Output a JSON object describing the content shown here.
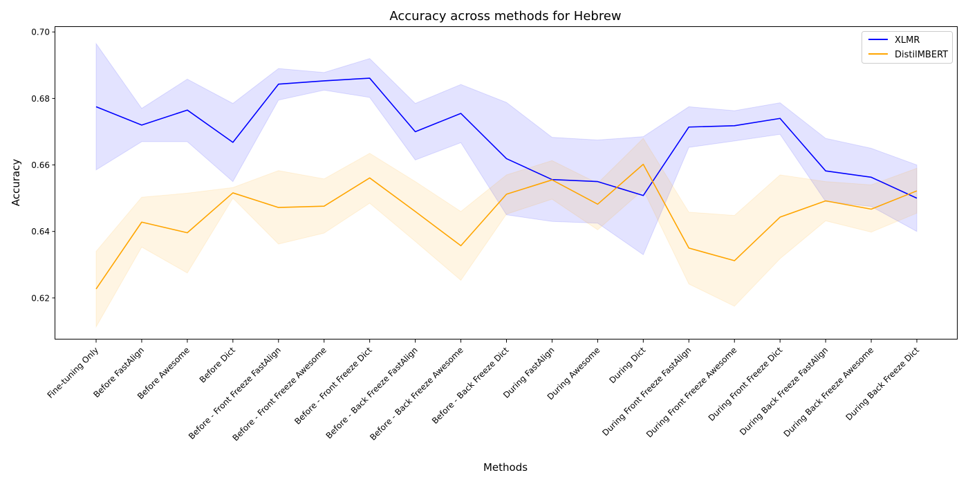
{
  "chart_data": {
    "type": "line",
    "title": "Accuracy across methods for Hebrew",
    "xlabel": "Methods",
    "ylabel": "Accuracy",
    "ylim": [
      0.6075,
      0.7015
    ],
    "yticks": [
      "0.62",
      "0.64",
      "0.66",
      "0.68",
      "0.70"
    ],
    "categories": [
      "Fine-tuning Only",
      "Before FastAlign",
      "Before Awesome",
      "Before Dict",
      "Before - Front Freeze FastAlign",
      "Before - Front Freeze Awesome",
      "Before - Front Freeze Dict",
      "Before - Back Freeze FastAlign",
      "Before - Back Freeze Awesome",
      "Before - Back Freeze Dict",
      "During FastAlign",
      "During Awesome",
      "During Dict",
      "During Front Freeze FastAlign",
      "During Front Freeze Awesome",
      "During Front Freeze Dict",
      "During Back Freeze FastAlign",
      "During Back Freeze Awesome",
      "During Back Freeze Dict"
    ],
    "legend_position": "top-right",
    "grid": false,
    "series": [
      {
        "name": "XLMR",
        "color": "#0000ff",
        "values": [
          0.6775,
          0.672,
          0.6765,
          0.6668,
          0.6843,
          0.6853,
          0.6861,
          0.67,
          0.6755,
          0.6619,
          0.6556,
          0.655,
          0.6508,
          0.6714,
          0.6718,
          0.674,
          0.6582,
          0.6563,
          0.65
        ],
        "upper": [
          0.6965,
          0.677,
          0.6858,
          0.6785,
          0.689,
          0.6878,
          0.692,
          0.6785,
          0.6842,
          0.6788,
          0.6683,
          0.6675,
          0.6685,
          0.6775,
          0.6763,
          0.6787,
          0.668,
          0.665,
          0.66
        ],
        "lower": [
          0.6585,
          0.667,
          0.667,
          0.655,
          0.6795,
          0.6825,
          0.6803,
          0.6615,
          0.6667,
          0.645,
          0.643,
          0.6425,
          0.633,
          0.6653,
          0.6672,
          0.6692,
          0.649,
          0.6475,
          0.64
        ]
      },
      {
        "name": "DistilMBERT",
        "color": "#ffa500",
        "values": [
          0.6227,
          0.6428,
          0.6396,
          0.6516,
          0.6472,
          0.6476,
          0.6561,
          0.646,
          0.6357,
          0.6512,
          0.6555,
          0.6482,
          0.6602,
          0.635,
          0.6312,
          0.6443,
          0.6492,
          0.6467,
          0.6522
        ],
        "upper": [
          0.634,
          0.6503,
          0.6515,
          0.6532,
          0.6583,
          0.6558,
          0.6635,
          0.655,
          0.646,
          0.657,
          0.6613,
          0.6545,
          0.668,
          0.6458,
          0.6448,
          0.657,
          0.655,
          0.654,
          0.659
        ],
        "lower": [
          0.6113,
          0.6353,
          0.6275,
          0.65,
          0.6362,
          0.6395,
          0.6485,
          0.637,
          0.6253,
          0.6452,
          0.6497,
          0.6405,
          0.6525,
          0.6242,
          0.6175,
          0.6318,
          0.6432,
          0.6398,
          0.6455
        ]
      }
    ]
  }
}
